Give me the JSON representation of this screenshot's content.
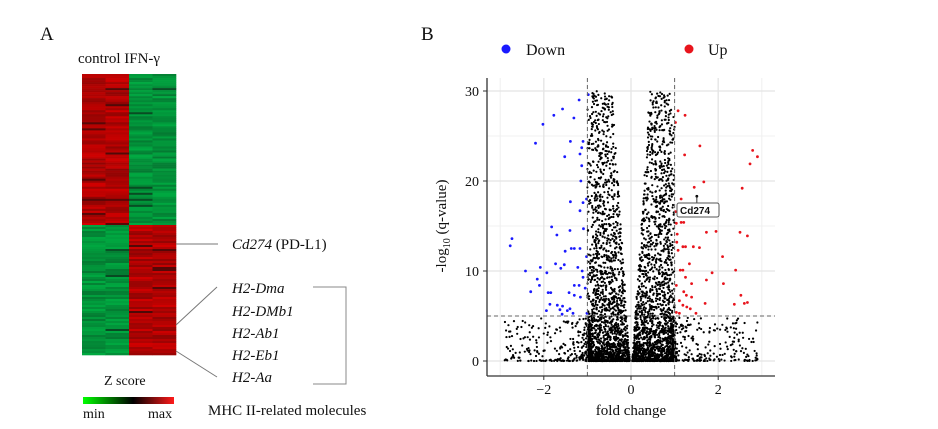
{
  "panel_a": {
    "letter": "A",
    "column_header": "control IFN-γ",
    "gene_label_italic": "Cd274",
    "gene_label_rest": " (PD-L1)",
    "mhc_genes": [
      "H2-Dma",
      "H2-DMb1",
      "H2-Ab1",
      "H2-Eb1",
      "H2-Aa"
    ],
    "mhc_group_label": "MHC II-related molecules",
    "colorbar": {
      "title": "Z score",
      "min_label": "min",
      "max_label": "max",
      "colors": [
        "#00ff00",
        "#000000",
        "#ff0000"
      ]
    }
  },
  "panel_b": {
    "letter": "B"
  },
  "chart_data": [
    {
      "type": "heatmap",
      "groups": [
        "control",
        "IFN-γ"
      ],
      "replicates_per_group": 2,
      "clusters": [
        {
          "pattern": "high in control, low in IFN-γ"
        },
        {
          "pattern": "low in control, high in IFN-γ"
        }
      ],
      "color_scale": {
        "min": "#00ff00",
        "mid": "#000000",
        "max": "#ff0000"
      }
    },
    {
      "type": "scatter",
      "xlabel": "fold change",
      "ylabel_parts": {
        "main": "-log",
        "sub": "10",
        "rest": " (q-value)"
      },
      "xlim": [
        -3.1,
        3.4
      ],
      "ylim": [
        -1.5,
        31
      ],
      "xticks": [
        -2,
        0,
        2
      ],
      "yticks": [
        0,
        10,
        20,
        30
      ],
      "grid": true,
      "thresholds": {
        "fold_change": [
          -1,
          1
        ],
        "neg_log10_q": 5
      },
      "legend": {
        "placement": "top",
        "entries": [
          {
            "name": "Down",
            "color": "#1a1aff"
          },
          {
            "name": "Up",
            "color": "#e8141c"
          }
        ]
      },
      "annotation": {
        "label": "Cd274",
        "x": 1.51,
        "y": 18.3
      },
      "background_color": "#000000",
      "series": [
        {
          "name": "Down",
          "color": "#1a1aff",
          "points": [
            [
              -0.98,
              29.6
            ],
            [
              -1.19,
              29
            ],
            [
              -1.57,
              28
            ],
            [
              -1.77,
              27.3
            ],
            [
              -1.31,
              27
            ],
            [
              -2.02,
              26.3
            ],
            [
              -2.19,
              24.2
            ],
            [
              -1.39,
              24.4
            ],
            [
              -1.1,
              24.4
            ],
            [
              -1.13,
              23.7
            ],
            [
              -1.17,
              23
            ],
            [
              -1.52,
              22.7
            ],
            [
              -1.13,
              21.7
            ],
            [
              -1.15,
              20
            ],
            [
              -1.39,
              17.7
            ],
            [
              -1.1,
              17.6
            ],
            [
              -1.02,
              18
            ],
            [
              -1.17,
              16.7
            ],
            [
              -1.82,
              14.9
            ],
            [
              -1.4,
              14.5
            ],
            [
              -1.09,
              14.7
            ],
            [
              -2.73,
              13.6
            ],
            [
              -2.77,
              12.8
            ],
            [
              -1.7,
              14
            ],
            [
              -1.51,
              12.2
            ],
            [
              -1.37,
              12.5
            ],
            [
              -1.3,
              12.5
            ],
            [
              -1.17,
              12.5
            ],
            [
              -1.02,
              11.6
            ],
            [
              -1.73,
              10.8
            ],
            [
              -1.53,
              10.7
            ],
            [
              -2.08,
              10.4
            ],
            [
              -1.61,
              10.3
            ],
            [
              -1.22,
              10.4
            ],
            [
              -1.12,
              10
            ],
            [
              -2.42,
              10
            ],
            [
              -1.93,
              9.8
            ],
            [
              -2.15,
              9.1
            ],
            [
              -1.1,
              9.3
            ],
            [
              -2.1,
              8.4
            ],
            [
              -1.3,
              8.4
            ],
            [
              -1.19,
              8.4
            ],
            [
              -1.05,
              8.1
            ],
            [
              -2.3,
              7.7
            ],
            [
              -1.9,
              7.6
            ],
            [
              -1.84,
              7.6
            ],
            [
              -1.42,
              7.6
            ],
            [
              -1.16,
              7.1
            ],
            [
              -1.3,
              7.3
            ],
            [
              -1.86,
              6.3
            ],
            [
              -1.69,
              6.2
            ],
            [
              -1.57,
              6.1
            ],
            [
              -1.4,
              5.8
            ],
            [
              -1.94,
              5.6
            ],
            [
              -1.63,
              5.7
            ],
            [
              -1.46,
              5.6
            ],
            [
              -1.58,
              5.2
            ],
            [
              -1.33,
              5.3
            ],
            [
              -1.01,
              5.3
            ]
          ]
        },
        {
          "name": "Up",
          "color": "#e8141c",
          "points": [
            [
              1.08,
              27.8
            ],
            [
              1.24,
              27.3
            ],
            [
              1.02,
              26.5
            ],
            [
              1.58,
              23.9
            ],
            [
              1.23,
              22.9
            ],
            [
              2.79,
              23.4
            ],
            [
              2.9,
              22.7
            ],
            [
              2.73,
              21.9
            ],
            [
              1.67,
              19.9
            ],
            [
              2.55,
              19.2
            ],
            [
              1.45,
              19.3
            ],
            [
              1.15,
              18
            ],
            [
              1.02,
              16.6
            ],
            [
              1.15,
              15.4
            ],
            [
              1.21,
              15.4
            ],
            [
              1.04,
              15.3
            ],
            [
              1.73,
              14.3
            ],
            [
              1.95,
              14.4
            ],
            [
              2.5,
              14.3
            ],
            [
              2.67,
              13.9
            ],
            [
              1.06,
              14.1
            ],
            [
              1.05,
              13.2
            ],
            [
              1.19,
              12.7
            ],
            [
              1.25,
              12.7
            ],
            [
              1.43,
              12.7
            ],
            [
              1.57,
              12.6
            ],
            [
              1.08,
              12.3
            ],
            [
              2.1,
              11.6
            ],
            [
              1.34,
              10.8
            ],
            [
              1.19,
              10.1
            ],
            [
              1.13,
              10.1
            ],
            [
              2.4,
              10.1
            ],
            [
              1.86,
              9.8
            ],
            [
              1.73,
              9
            ],
            [
              1.25,
              9.3
            ],
            [
              1.39,
              8.6
            ],
            [
              1.04,
              8.4
            ],
            [
              2.12,
              8.6
            ],
            [
              1.21,
              7.7
            ],
            [
              1.27,
              7.3
            ],
            [
              1.39,
              7.1
            ],
            [
              2.52,
              7.3
            ],
            [
              1.11,
              6.7
            ],
            [
              1.7,
              6.4
            ],
            [
              2.67,
              6.5
            ],
            [
              2.6,
              6.4
            ],
            [
              2.37,
              6.3
            ],
            [
              1.19,
              6.2
            ],
            [
              1.28,
              6
            ],
            [
              1.36,
              5.8
            ],
            [
              1.04,
              5.4
            ],
            [
              1.11,
              5.3
            ],
            [
              1.49,
              5.3
            ]
          ]
        }
      ]
    }
  ]
}
